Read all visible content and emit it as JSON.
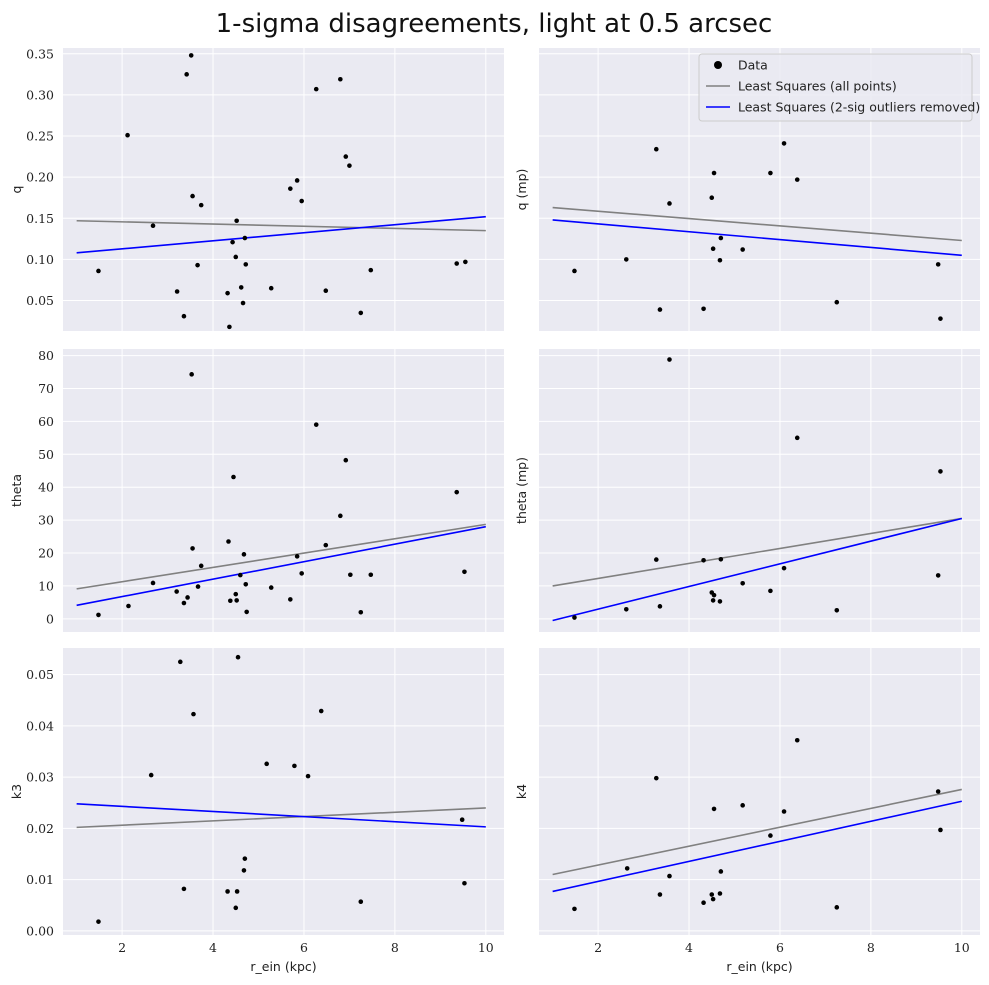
{
  "figure": {
    "title": "1-sigma disagreements, light at 0.5 arcsec"
  },
  "chart_data": [
    {
      "type": "scatter",
      "panel": "top-left",
      "xlabel": "",
      "ylabel": "q",
      "xlim": [
        0.7,
        10.4
      ],
      "ylim": [
        0.013,
        0.357
      ],
      "xticks": [
        2,
        4,
        6,
        8,
        10
      ],
      "xtick_labels_visible": false,
      "yticks": [
        0.05,
        0.1,
        0.15,
        0.2,
        0.25,
        0.3,
        0.35
      ],
      "ytick_labels": [
        "0.05",
        "0.10",
        "0.15",
        "0.20",
        "0.25",
        "0.30",
        "0.35"
      ],
      "grid": true,
      "points": [
        [
          1.48,
          0.086
        ],
        [
          2.12,
          0.251
        ],
        [
          2.68,
          0.141
        ],
        [
          3.21,
          0.061
        ],
        [
          3.36,
          0.031
        ],
        [
          3.42,
          0.325
        ],
        [
          3.52,
          0.348
        ],
        [
          3.55,
          0.177
        ],
        [
          3.66,
          0.093
        ],
        [
          3.74,
          0.166
        ],
        [
          4.32,
          0.059
        ],
        [
          4.36,
          0.018
        ],
        [
          4.43,
          0.121
        ],
        [
          4.5,
          0.103
        ],
        [
          4.52,
          0.147
        ],
        [
          4.62,
          0.066
        ],
        [
          4.66,
          0.047
        ],
        [
          4.7,
          0.126
        ],
        [
          4.72,
          0.094
        ],
        [
          5.28,
          0.065
        ],
        [
          5.7,
          0.186
        ],
        [
          5.85,
          0.196
        ],
        [
          5.95,
          0.171
        ],
        [
          6.27,
          0.307
        ],
        [
          6.48,
          0.062
        ],
        [
          6.8,
          0.319
        ],
        [
          6.92,
          0.225
        ],
        [
          7.0,
          0.214
        ],
        [
          7.25,
          0.035
        ],
        [
          7.47,
          0.087
        ],
        [
          9.36,
          0.095
        ],
        [
          9.55,
          0.097
        ]
      ],
      "fits": [
        {
          "name": "Least Squares (all points)",
          "color": "#808080",
          "x": [
            1,
            10
          ],
          "y": [
            0.147,
            0.135
          ]
        },
        {
          "name": "Least Squares (2-sig outliers removed)",
          "color": "#0000ff",
          "x": [
            1,
            10
          ],
          "y": [
            0.108,
            0.152
          ]
        }
      ]
    },
    {
      "type": "scatter",
      "panel": "top-right",
      "xlabel": "",
      "ylabel": "q (mp)",
      "xlim": [
        0.7,
        10.4
      ],
      "ylim": [
        0.013,
        0.357
      ],
      "xticks": [
        2,
        4,
        6,
        8,
        10
      ],
      "xtick_labels_visible": false,
      "yticks": [
        0.05,
        0.1,
        0.15,
        0.2,
        0.25,
        0.3,
        0.35
      ],
      "ytick_labels_visible": false,
      "grid": true,
      "legend": {
        "placement": "upper right",
        "entries": [
          {
            "label": "Data",
            "marker": "dot",
            "color": "#000000"
          },
          {
            "label": "Least Squares (all points)",
            "marker": "line",
            "color": "#808080"
          },
          {
            "label": "Least Squares (2-sig outliers removed)",
            "marker": "line",
            "color": "#0000ff"
          }
        ]
      },
      "points": [
        [
          1.48,
          0.086
        ],
        [
          2.62,
          0.1
        ],
        [
          3.28,
          0.234
        ],
        [
          3.36,
          0.039
        ],
        [
          3.57,
          0.168
        ],
        [
          4.32,
          0.04
        ],
        [
          4.5,
          0.175
        ],
        [
          4.53,
          0.113
        ],
        [
          4.55,
          0.205
        ],
        [
          4.68,
          0.099
        ],
        [
          4.7,
          0.126
        ],
        [
          5.18,
          0.112
        ],
        [
          5.79,
          0.205
        ],
        [
          6.09,
          0.241
        ],
        [
          6.38,
          0.197
        ],
        [
          7.25,
          0.048
        ],
        [
          9.48,
          0.094
        ],
        [
          9.53,
          0.028
        ]
      ],
      "fits": [
        {
          "name": "Least Squares (all points)",
          "color": "#808080",
          "x": [
            1,
            10
          ],
          "y": [
            0.163,
            0.123
          ]
        },
        {
          "name": "Least Squares (2-sig outliers removed)",
          "color": "#0000ff",
          "x": [
            1,
            10
          ],
          "y": [
            0.148,
            0.105
          ]
        }
      ]
    },
    {
      "type": "scatter",
      "panel": "middle-left",
      "xlabel": "",
      "ylabel": "theta",
      "xlim": [
        0.7,
        10.4
      ],
      "ylim": [
        -4,
        82
      ],
      "xticks": [
        2,
        4,
        6,
        8,
        10
      ],
      "xtick_labels_visible": false,
      "yticks": [
        0,
        10,
        20,
        30,
        40,
        50,
        60,
        70,
        80
      ],
      "ytick_labels": [
        "0",
        "10",
        "20",
        "30",
        "40",
        "50",
        "60",
        "70",
        "80"
      ],
      "grid": true,
      "points": [
        [
          1.48,
          1.2
        ],
        [
          2.14,
          3.9
        ],
        [
          2.68,
          10.9
        ],
        [
          3.2,
          8.3
        ],
        [
          3.36,
          4.8
        ],
        [
          3.44,
          6.5
        ],
        [
          3.53,
          74.3
        ],
        [
          3.55,
          21.4
        ],
        [
          3.67,
          9.8
        ],
        [
          3.74,
          16.1
        ],
        [
          4.34,
          23.5
        ],
        [
          4.38,
          5.5
        ],
        [
          4.45,
          43.1
        ],
        [
          4.5,
          7.5
        ],
        [
          4.52,
          5.6
        ],
        [
          4.6,
          13.3
        ],
        [
          4.68,
          19.6
        ],
        [
          4.72,
          10.5
        ],
        [
          4.74,
          2.1
        ],
        [
          5.28,
          9.5
        ],
        [
          5.7,
          5.9
        ],
        [
          5.85,
          19.0
        ],
        [
          5.95,
          13.8
        ],
        [
          6.27,
          59.0
        ],
        [
          6.48,
          22.4
        ],
        [
          6.8,
          31.3
        ],
        [
          6.92,
          48.2
        ],
        [
          7.02,
          13.4
        ],
        [
          7.25,
          2.0
        ],
        [
          7.47,
          13.4
        ],
        [
          9.36,
          38.5
        ],
        [
          9.53,
          14.3
        ]
      ],
      "fits": [
        {
          "name": "Least Squares (all points)",
          "color": "#808080",
          "x": [
            1,
            10
          ],
          "y": [
            9.1,
            28.7
          ]
        },
        {
          "name": "Least Squares (2-sig outliers removed)",
          "color": "#0000ff",
          "x": [
            1,
            10
          ],
          "y": [
            4.1,
            28.0
          ]
        }
      ]
    },
    {
      "type": "scatter",
      "panel": "middle-right",
      "xlabel": "",
      "ylabel": "theta (mp)",
      "xlim": [
        0.7,
        10.4
      ],
      "ylim": [
        -4,
        82
      ],
      "xticks": [
        2,
        4,
        6,
        8,
        10
      ],
      "xtick_labels_visible": false,
      "yticks": [
        0,
        10,
        20,
        30,
        40,
        50,
        60,
        70,
        80
      ],
      "ytick_labels_visible": false,
      "grid": true,
      "points": [
        [
          1.48,
          0.4
        ],
        [
          2.62,
          2.9
        ],
        [
          3.28,
          18.0
        ],
        [
          3.36,
          3.8
        ],
        [
          3.57,
          78.8
        ],
        [
          4.32,
          17.8
        ],
        [
          4.5,
          8.0
        ],
        [
          4.53,
          5.6
        ],
        [
          4.55,
          7.2
        ],
        [
          4.68,
          5.3
        ],
        [
          4.7,
          18.1
        ],
        [
          5.18,
          10.8
        ],
        [
          5.79,
          8.5
        ],
        [
          6.09,
          15.4
        ],
        [
          6.38,
          55.0
        ],
        [
          7.25,
          2.6
        ],
        [
          9.48,
          13.2
        ],
        [
          9.53,
          44.8
        ]
      ],
      "fits": [
        {
          "name": "Least Squares (all points)",
          "color": "#808080",
          "x": [
            1,
            10
          ],
          "y": [
            10.0,
            30.5
          ]
        },
        {
          "name": "Least Squares (2-sig outliers removed)",
          "color": "#0000ff",
          "x": [
            1,
            10
          ],
          "y": [
            -0.5,
            30.5
          ]
        }
      ]
    },
    {
      "type": "scatter",
      "panel": "bottom-left",
      "xlabel": "r_ein (kpc)",
      "ylabel": "k3",
      "xlim": [
        0.7,
        10.4
      ],
      "ylim": [
        -0.0008,
        0.0552
      ],
      "xticks": [
        2,
        4,
        6,
        8,
        10
      ],
      "xtick_labels": [
        "2",
        "4",
        "6",
        "8",
        "10"
      ],
      "yticks": [
        0.0,
        0.01,
        0.02,
        0.03,
        0.04,
        0.05
      ],
      "ytick_labels": [
        "0.00",
        "0.01",
        "0.02",
        "0.03",
        "0.04",
        "0.05"
      ],
      "grid": true,
      "points": [
        [
          1.48,
          0.0018
        ],
        [
          2.64,
          0.0304
        ],
        [
          3.28,
          0.0525
        ],
        [
          3.36,
          0.0082
        ],
        [
          3.57,
          0.0423
        ],
        [
          4.32,
          0.0077
        ],
        [
          4.5,
          0.0045
        ],
        [
          4.53,
          0.0077
        ],
        [
          4.55,
          0.0534
        ],
        [
          4.68,
          0.0118
        ],
        [
          4.7,
          0.0141
        ],
        [
          5.18,
          0.0326
        ],
        [
          5.79,
          0.0322
        ],
        [
          6.09,
          0.0302
        ],
        [
          6.38,
          0.0429
        ],
        [
          7.25,
          0.0057
        ],
        [
          9.48,
          0.0217
        ],
        [
          9.53,
          0.0093
        ]
      ],
      "fits": [
        {
          "name": "Least Squares (all points)",
          "color": "#808080",
          "x": [
            1,
            10
          ],
          "y": [
            0.0202,
            0.024
          ]
        },
        {
          "name": "Least Squares (2-sig outliers removed)",
          "color": "#0000ff",
          "x": [
            1,
            10
          ],
          "y": [
            0.0248,
            0.0203
          ]
        }
      ]
    },
    {
      "type": "scatter",
      "panel": "bottom-right",
      "xlabel": "r_ein (kpc)",
      "ylabel": "k4",
      "xlim": [
        0.7,
        10.4
      ],
      "ylim": [
        -0.0008,
        0.0552
      ],
      "xticks": [
        2,
        4,
        6,
        8,
        10
      ],
      "xtick_labels": [
        "2",
        "4",
        "6",
        "8",
        "10"
      ],
      "yticks": [
        0.0,
        0.01,
        0.02,
        0.03,
        0.04,
        0.05
      ],
      "ytick_labels_visible": false,
      "grid": true,
      "points": [
        [
          1.48,
          0.0043
        ],
        [
          2.64,
          0.0122
        ],
        [
          3.28,
          0.0298
        ],
        [
          3.36,
          0.0071
        ],
        [
          3.57,
          0.0107
        ],
        [
          4.32,
          0.0055
        ],
        [
          4.5,
          0.0071
        ],
        [
          4.53,
          0.0062
        ],
        [
          4.55,
          0.0238
        ],
        [
          4.68,
          0.0073
        ],
        [
          4.7,
          0.0116
        ],
        [
          5.18,
          0.0245
        ],
        [
          5.79,
          0.0186
        ],
        [
          6.09,
          0.0233
        ],
        [
          6.38,
          0.0372
        ],
        [
          7.25,
          0.0046
        ],
        [
          9.48,
          0.0272
        ],
        [
          9.53,
          0.0197
        ]
      ],
      "fits": [
        {
          "name": "Least Squares (all points)",
          "color": "#808080",
          "x": [
            1,
            10
          ],
          "y": [
            0.011,
            0.0276
          ]
        },
        {
          "name": "Least Squares (2-sig outliers removed)",
          "color": "#0000ff",
          "x": [
            1,
            10
          ],
          "y": [
            0.0077,
            0.0253
          ]
        }
      ]
    }
  ]
}
